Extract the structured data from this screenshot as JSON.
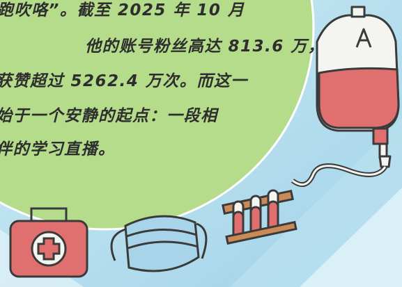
{
  "text": {
    "lines": [
      "跑吹咯”。截至 2025 年 10 月",
      "他的账号粉丝高达 813.6 万，",
      "获赞超过 5262.4 万次。而这一",
      "始于一个安静的起点：一段相",
      "伴的学习直播。"
    ]
  }
}
